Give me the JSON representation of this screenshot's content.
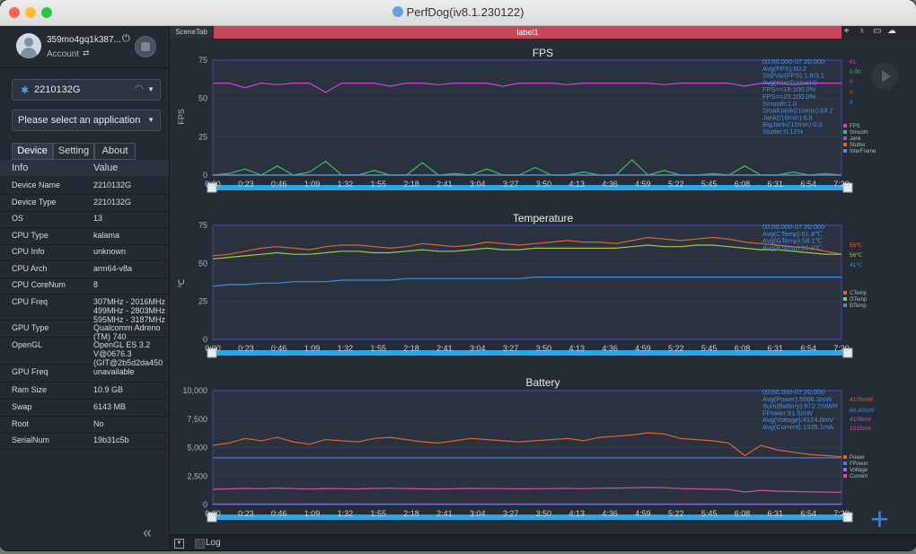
{
  "window": {
    "title": "PerfDog(iv8.1.230122)"
  },
  "user": {
    "name": "359mo4gq1k387...",
    "account_label": "Account"
  },
  "device_select": {
    "value": "2210132G"
  },
  "app_select": {
    "placeholder": "Please select an application"
  },
  "tabs": [
    "Device",
    "Setting",
    "About"
  ],
  "info": {
    "headers": {
      "key": "Info",
      "value": "Value"
    },
    "rows": [
      {
        "key": "Device Name",
        "value": "2210132G"
      },
      {
        "key": "Device Type",
        "value": "2210132G"
      },
      {
        "key": "OS",
        "value": "13"
      },
      {
        "key": "CPU Type",
        "value": "kalama"
      },
      {
        "key": "CPU Info",
        "value": "unknown"
      },
      {
        "key": "CPU Arch",
        "value": "arm64-v8a"
      },
      {
        "key": "CPU CoreNum",
        "value": "8"
      },
      {
        "key": "CPU Freq",
        "value": "307MHz - 2016MHz\n499MHz - 2803MHz\n595MHz - 3187MHz"
      },
      {
        "key": "GPU Type",
        "value": "Qualcomm Adreno\n(TM) 740"
      },
      {
        "key": "OpenGL",
        "value": "OpenGL ES 3.2\nV@0676.3\n(GIT@2b5d2da450"
      },
      {
        "key": "GPU Freq",
        "value": "unavailable"
      },
      {
        "key": "Ram Size",
        "value": "10.9 GB"
      },
      {
        "key": "Swap",
        "value": "6143 MB"
      },
      {
        "key": "Root",
        "value": "No"
      },
      {
        "key": "SerialNum",
        "value": "19b31c5b"
      }
    ]
  },
  "scene_tab": "SceneTab",
  "label_bar": "label1",
  "x_ticks": [
    "0:00",
    "0:23",
    "0:46",
    "1:09",
    "1:32",
    "1:55",
    "2:18",
    "2:41",
    "3:04",
    "3:27",
    "3:50",
    "4:13",
    "4:36",
    "4:59",
    "5:22",
    "5:45",
    "6:08",
    "6:31",
    "6:54",
    "7:20"
  ],
  "colors": {
    "fps": "#d63fd6",
    "smooth": "#3fbf5f",
    "jank": "#9b59b6",
    "stutter": "#e0652b",
    "interframe": "#4a90e2",
    "ctemp": "#e0652b",
    "gtemp": "#9ccc3c",
    "btemp": "#3f8fe0",
    "power": "#e0652b",
    "fpower": "#4a7be0",
    "voltage": "#b35ae0",
    "current": "#d94fa8"
  },
  "chart_data": [
    {
      "type": "line",
      "title": "FPS",
      "ylabel": "FPS",
      "ylim": [
        0,
        75
      ],
      "yticks": [
        "0",
        "25",
        "50",
        "75"
      ],
      "x": "x_ticks",
      "series": [
        {
          "name": "FPS",
          "values": [
            60,
            60,
            57,
            60,
            59,
            60,
            60,
            54,
            60,
            60,
            60,
            58,
            60,
            60,
            59,
            60,
            60,
            60,
            58,
            60,
            60,
            60,
            59,
            60,
            60,
            60,
            60,
            60,
            59,
            60,
            60,
            60,
            60,
            58,
            60,
            60,
            59,
            60,
            60,
            60
          ]
        },
        {
          "name": "Smooth",
          "values": [
            0,
            1,
            4,
            0,
            6,
            0,
            2,
            9,
            0,
            0,
            3,
            0,
            0,
            8,
            0,
            1,
            0,
            4,
            0,
            0,
            5,
            0,
            0,
            2,
            0,
            0,
            10,
            0,
            3,
            0,
            0,
            1,
            0,
            6,
            0,
            0,
            2,
            0,
            1,
            0
          ]
        },
        {
          "name": "Jank",
          "values": [
            0,
            0,
            0,
            0,
            0,
            0,
            0,
            0,
            0,
            0,
            0,
            0,
            0,
            0,
            0,
            0,
            0,
            0,
            0,
            0,
            0,
            0,
            0,
            0,
            0,
            0,
            0,
            0,
            0,
            0,
            0,
            0,
            0,
            0,
            0,
            0,
            0,
            0,
            0,
            0
          ]
        },
        {
          "name": "Stutter",
          "values": [
            0,
            0,
            0,
            0,
            0,
            0,
            0,
            0,
            0,
            0,
            0,
            0,
            0,
            0,
            0,
            0,
            0,
            0,
            0,
            0,
            0,
            0,
            0,
            0,
            0,
            0,
            0,
            0,
            0,
            0,
            0,
            0,
            0,
            0,
            0,
            0,
            0,
            0,
            0,
            0
          ]
        },
        {
          "name": "InterFrame",
          "values": [
            0,
            0,
            0,
            0,
            0,
            0,
            0,
            0,
            0,
            0,
            0,
            0,
            0,
            0,
            0,
            0,
            0,
            0,
            0,
            0,
            0,
            0,
            0,
            0,
            0,
            0,
            0,
            0,
            0,
            0,
            0,
            0,
            0,
            0,
            0,
            0,
            0,
            0,
            0,
            0
          ]
        }
      ],
      "stats": [
        "00:00.000-07:20.000",
        "Avg(FPS):60.2",
        "Std/Var(FPS):1.8/3.1",
        "Avg(InterFrame):0",
        "FPS>=18:100.0%",
        "FPS>=25:100.0%",
        "Smooth:1.0",
        "SmallJank(/10min):68.2",
        "Jank(/10min):6.8",
        "BigJank(/10min):0.0",
        "Stutter:0.12%"
      ],
      "current_values": [
        "61",
        "0.00",
        "0",
        "0",
        "0"
      ]
    },
    {
      "type": "line",
      "title": "Temperature",
      "ylabel": "℃",
      "ylim": [
        0,
        75
      ],
      "yticks": [
        "0",
        "25",
        "50",
        "75"
      ],
      "x": "x_ticks",
      "series": [
        {
          "name": "CTemp",
          "values": [
            55,
            56,
            58,
            60,
            61,
            60,
            59,
            61,
            62,
            62,
            61,
            60,
            61,
            63,
            62,
            61,
            62,
            64,
            63,
            62,
            63,
            64,
            65,
            64,
            64,
            63,
            65,
            67,
            66,
            65,
            66,
            67,
            66,
            64,
            63,
            62,
            61,
            60,
            58,
            56
          ]
        },
        {
          "name": "GTemp",
          "values": [
            53,
            54,
            55,
            56,
            57,
            56,
            56,
            57,
            58,
            58,
            57,
            57,
            58,
            59,
            58,
            58,
            59,
            60,
            59,
            59,
            60,
            60,
            60,
            60,
            60,
            60,
            61,
            62,
            61,
            61,
            62,
            62,
            61,
            60,
            59,
            59,
            58,
            57,
            56,
            56
          ]
        },
        {
          "name": "BTemp",
          "values": [
            35,
            36,
            36,
            37,
            37,
            38,
            38,
            38,
            39,
            39,
            39,
            39,
            40,
            40,
            40,
            40,
            40,
            40,
            40,
            40,
            41,
            41,
            41,
            41,
            41,
            41,
            41,
            41,
            41,
            41,
            41,
            41,
            41,
            41,
            41,
            41,
            41,
            41,
            41,
            41
          ]
        }
      ],
      "stats": [
        "00:00.000-07:20.000",
        "Avg(CTemp):61.8℃",
        "Avg(GTemp):58.1℃",
        "Avg(BTemp):39.3℃"
      ],
      "current_values": [
        "56℃",
        "56℃",
        "41℃"
      ]
    },
    {
      "type": "line",
      "title": "Battery",
      "ylim": [
        0,
        10000
      ],
      "yticks": [
        "0",
        "2,500",
        "5,000",
        "7,500",
        "10,000"
      ],
      "x": "x_ticks",
      "series": [
        {
          "name": "Power",
          "values": [
            5200,
            5400,
            5800,
            5600,
            5900,
            5500,
            5300,
            5700,
            5600,
            5500,
            5800,
            5900,
            5700,
            5500,
            5400,
            5600,
            5800,
            5700,
            5600,
            5500,
            5600,
            5700,
            5800,
            5600,
            5900,
            6000,
            6100,
            6300,
            6200,
            5800,
            5700,
            5600,
            5400,
            4300,
            5200,
            4800,
            4600,
            4400,
            4300,
            4200
          ]
        },
        {
          "name": "FPower",
          "values": [
            4100,
            4100,
            4100,
            4100,
            4100,
            4100,
            4100,
            4100,
            4100,
            4100,
            4100,
            4100,
            4100,
            4100,
            4100,
            4100,
            4100,
            4100,
            4100,
            4100,
            4100,
            4100,
            4100,
            4100,
            4100,
            4100,
            4100,
            4100,
            4100,
            4100,
            4100,
            4100,
            4100,
            4100,
            4100,
            4100,
            4100,
            4100,
            4100,
            4100
          ]
        },
        {
          "name": "Voltage",
          "values": [
            50,
            50,
            50,
            50,
            50,
            50,
            50,
            50,
            50,
            50,
            50,
            50,
            50,
            50,
            50,
            50,
            50,
            50,
            50,
            50,
            50,
            50,
            50,
            50,
            50,
            50,
            50,
            50,
            50,
            50,
            50,
            50,
            50,
            50,
            50,
            50,
            50,
            50,
            50,
            50
          ]
        },
        {
          "name": "Current",
          "values": [
            1350,
            1380,
            1420,
            1390,
            1450,
            1400,
            1360,
            1410,
            1390,
            1370,
            1420,
            1440,
            1410,
            1380,
            1370,
            1390,
            1420,
            1410,
            1400,
            1380,
            1390,
            1400,
            1420,
            1390,
            1440,
            1450,
            1470,
            1500,
            1480,
            1400,
            1380,
            1350,
            1320,
            1100,
            1250,
            1180,
            1150,
            1120,
            1100,
            1080
          ]
        }
      ],
      "stats": [
        "00:00.000-07:20.000",
        "Avg(Power):5506.3mW",
        "Sum(Battery):672.2mWH",
        "FPower:91.5mW",
        "Avg(Voltage):4124.0mV",
        "Avg(Current):1335.1mA"
      ],
      "current_values": [
        "4170mW",
        "68.40mW",
        "4109mV",
        "1015mA"
      ]
    }
  ],
  "bottom": {
    "log_label": "Log"
  }
}
